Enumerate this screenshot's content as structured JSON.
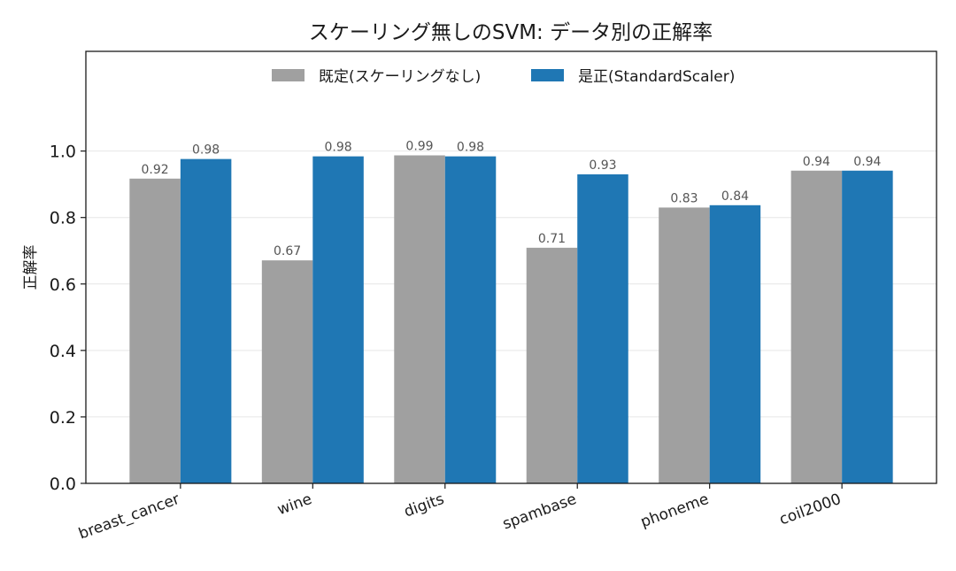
{
  "chart_data": {
    "type": "bar",
    "title": "スケーリング無しのSVM: データ別の正解率",
    "xlabel": "",
    "ylabel": "正解率",
    "categories": [
      "breast_cancer",
      "wine",
      "digits",
      "spambase",
      "phoneme",
      "coil2000"
    ],
    "series": [
      {
        "name": "既定(スケーリングなし)",
        "color": "#a0a0a0",
        "values": [
          0.917,
          0.671,
          0.987,
          0.709,
          0.83,
          0.941
        ],
        "labels": [
          "0.92",
          "0.67",
          "0.99",
          "0.71",
          "0.83",
          "0.94"
        ]
      },
      {
        "name": "是正(StandardScaler)",
        "color": "#1f77b4",
        "values": [
          0.976,
          0.984,
          0.984,
          0.93,
          0.837,
          0.941
        ],
        "labels": [
          "0.98",
          "0.98",
          "0.98",
          "0.93",
          "0.84",
          "0.94"
        ]
      }
    ],
    "ylim": [
      0,
      1.3
    ],
    "yticks": [
      "0.0",
      "0.2",
      "0.4",
      "0.6",
      "0.8",
      "1.0"
    ],
    "grid": "y",
    "legend": "top-center"
  }
}
